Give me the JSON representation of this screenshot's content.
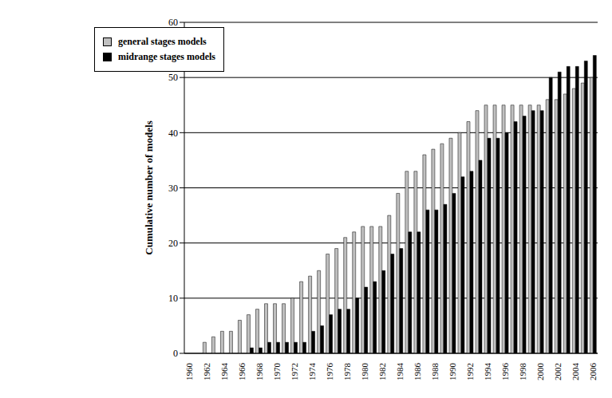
{
  "chart_data": {
    "type": "bar",
    "y_label": "Cumulative number of models",
    "categories": [
      "1960",
      null,
      "1962",
      null,
      "1964",
      null,
      "1966",
      null,
      "1968",
      null,
      "1970",
      null,
      "1972",
      null,
      "1974",
      null,
      "1976",
      null,
      "1978",
      null,
      "1980",
      null,
      "1982",
      null,
      "1984",
      null,
      "1986",
      null,
      "1988",
      null,
      "1990",
      null,
      "1992",
      null,
      "1994",
      null,
      "1996",
      null,
      "1998",
      null,
      "2000",
      null,
      "2002",
      null,
      "2004",
      null,
      "2006"
    ],
    "series": [
      {
        "name": "general stages models",
        "color": "#c0c0c0",
        "values": [
          0,
          0,
          2,
          3,
          4,
          4,
          6,
          7,
          8,
          9,
          9,
          9,
          10,
          13,
          14,
          15,
          18,
          19,
          21,
          22,
          23,
          23,
          23,
          25,
          29,
          33,
          33,
          36,
          37,
          38,
          39,
          40,
          42,
          44,
          45,
          45,
          45,
          45,
          45,
          45,
          45,
          46,
          46,
          47,
          48,
          49,
          50
        ]
      },
      {
        "name": "midrange stages models",
        "color": "#000000",
        "values": [
          0,
          0,
          0,
          0,
          0,
          0,
          0,
          1,
          1,
          2,
          2,
          2,
          2,
          2,
          4,
          5,
          7,
          8,
          8,
          10,
          12,
          13,
          15,
          18,
          19,
          22,
          22,
          26,
          26,
          27,
          29,
          32,
          33,
          35,
          39,
          39,
          40,
          42,
          43,
          44,
          44,
          50,
          51,
          52,
          52,
          53,
          54
        ]
      }
    ],
    "ylim": [
      0,
      60
    ],
    "yticks": [
      0,
      10,
      20,
      30,
      40,
      50,
      60
    ],
    "grid": true,
    "legend": "upper left"
  }
}
